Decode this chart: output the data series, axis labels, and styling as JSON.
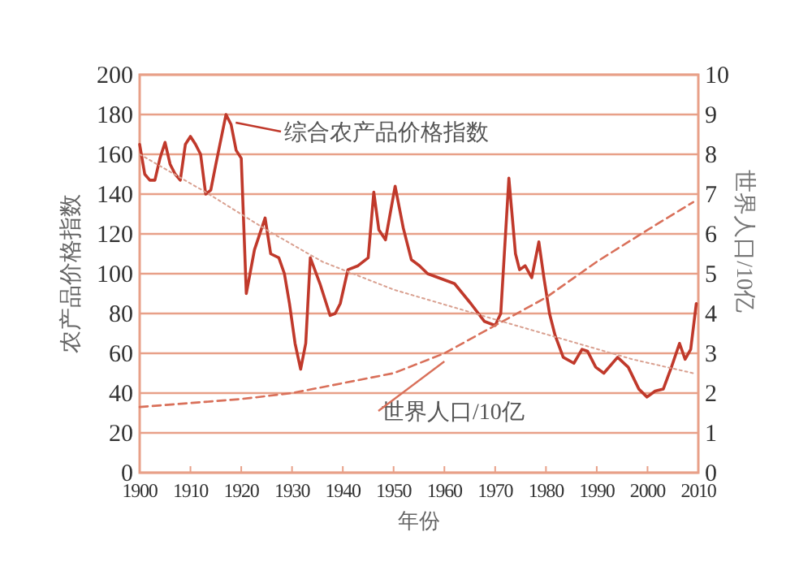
{
  "chart_data": {
    "type": "line",
    "xlabel": "年份",
    "ylabel": "农产品价格指数",
    "y2label": "世界人口/10亿",
    "xlim": [
      1900,
      2010
    ],
    "xticks": [
      1900,
      1910,
      1920,
      1930,
      1940,
      1950,
      1960,
      1970,
      1980,
      1990,
      2000,
      2010
    ],
    "ylim": [
      0,
      200
    ],
    "yticks": [
      0,
      20,
      40,
      60,
      80,
      100,
      120,
      140,
      160,
      180,
      200
    ],
    "y2lim": [
      0,
      10
    ],
    "y2ticks": [
      0,
      1,
      2,
      3,
      4,
      5,
      6,
      7,
      8,
      9,
      10
    ],
    "grid": "y",
    "series": [
      {
        "name": "综合农产品价格指数",
        "color": "#c0392b",
        "line_style": "solid",
        "x": [
          1900,
          1901,
          1902,
          1903,
          1904,
          1905,
          1906,
          1907,
          1908,
          1909,
          1910,
          1911,
          1912,
          1913,
          1914,
          1915,
          1917,
          1918,
          1919,
          1920,
          1921,
          1922.6,
          1924.7,
          1925.8,
          1927.4,
          1928.5,
          1929.5,
          1930.6,
          1931.7,
          1932.7,
          1933.6,
          1935.5,
          1937.5,
          1938.5,
          1939.5,
          1941,
          1943,
          1945,
          1946.1,
          1947.1,
          1948.4,
          1950.3,
          1951.9,
          1953.5,
          1955.1,
          1956.7,
          1962,
          1965.2,
          1967.9,
          1970,
          1971.1,
          1972.7,
          1974,
          1974.8,
          1975.9,
          1977.2,
          1978.6,
          1979.6,
          1980.7,
          1981.8,
          1983.4,
          1985.5,
          1987.1,
          1988.2,
          1989.8,
          1991.4,
          1994.1,
          1996.2,
          1998.3,
          1999.9,
          2001.5,
          2003.1,
          2004.7,
          2006.3,
          2007.4,
          2008.5,
          2009.6
        ],
        "values": [
          165,
          150,
          147,
          147,
          158,
          166,
          155,
          150,
          147,
          165,
          169,
          165,
          160,
          140,
          142,
          155,
          180,
          175,
          162,
          158,
          90,
          112,
          128,
          110,
          108,
          100,
          85,
          65,
          52,
          65,
          108,
          95,
          79,
          80,
          85,
          102,
          104,
          108,
          141,
          122,
          117,
          144,
          123,
          107,
          104,
          100,
          95,
          85,
          76,
          74,
          80,
          148,
          110,
          102,
          104,
          98,
          116,
          98,
          80,
          69,
          58,
          55,
          62,
          61,
          53,
          50,
          58,
          53,
          42,
          38,
          41,
          42,
          53,
          65,
          57,
          62,
          85
        ]
      },
      {
        "name": "世界人口/10亿",
        "color": "#d9705a",
        "line_style": "dashed",
        "axis": "y2",
        "x": [
          1900,
          1910,
          1920,
          1930,
          1940,
          1950,
          1960,
          1970,
          1980,
          1990,
          2000,
          2009
        ],
        "values": [
          1.65,
          1.75,
          1.85,
          2.0,
          2.25,
          2.5,
          3.0,
          3.7,
          4.4,
          5.3,
          6.1,
          6.8
        ]
      },
      {
        "color": "#d9a090",
        "line_style": "dotted",
        "x": [
          1900,
          1913,
          1925,
          1936,
          1950,
          1970,
          1997,
          2009
        ],
        "values": [
          160,
          141,
          122,
          106,
          92,
          77,
          57,
          50
        ]
      }
    ]
  }
}
